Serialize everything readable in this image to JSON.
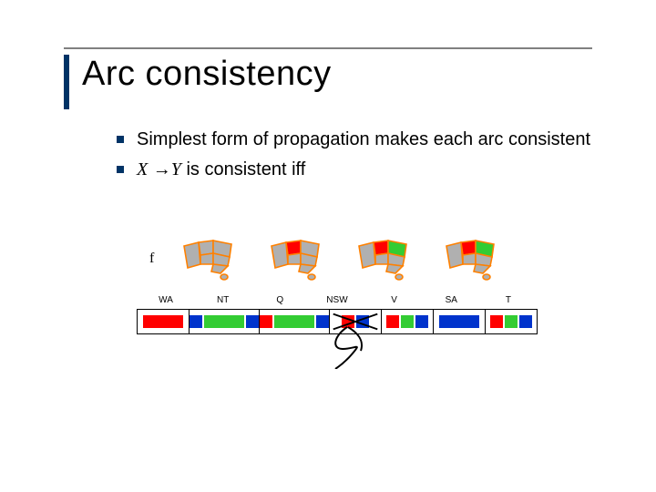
{
  "title": "Arc consistency",
  "bullets": {
    "b1": "Simplest form of propagation makes each arc consistent",
    "b2_x": "X",
    "b2_arrow": " →",
    "b2_y": "Y",
    "b2_rest": " is consistent iff"
  },
  "f_mark": "f",
  "colors": {
    "red": "#ff0000",
    "green": "#33cc33",
    "blue": "#0033cc",
    "orange": "#ff8000",
    "outline": "#ff8000",
    "gray": "#b0b0b0"
  },
  "regions": [
    "WA",
    "NT",
    "Q",
    "NSW",
    "V",
    "SA",
    "T"
  ],
  "domains": {
    "WA": [
      {
        "c": "red",
        "w": "big"
      }
    ],
    "NT": [
      {
        "c": "blue",
        "w": "sm"
      },
      {
        "c": "green",
        "w": "big"
      },
      {
        "c": "blue",
        "w": "sm"
      }
    ],
    "Q": [
      {
        "c": "red",
        "w": "sm"
      },
      {
        "c": "green",
        "w": "big"
      },
      {
        "c": "blue",
        "w": "sm"
      }
    ],
    "NSW": [
      {
        "c": "red",
        "w": "sm"
      },
      {
        "c": "blue",
        "w": "sm"
      }
    ],
    "V": [
      {
        "c": "red",
        "w": "sm"
      },
      {
        "c": "green",
        "w": "sm"
      },
      {
        "c": "blue",
        "w": "sm"
      }
    ],
    "SA": [
      {
        "c": "blue",
        "w": "big"
      }
    ],
    "T": [
      {
        "c": "red",
        "w": "sm"
      },
      {
        "c": "green",
        "w": "sm"
      },
      {
        "c": "blue",
        "w": "sm"
      }
    ]
  },
  "nsw_crossed": true,
  "maps": [
    {
      "wa": "gray",
      "nt": "gray",
      "q": "gray",
      "sa": "gray",
      "nsw": "gray",
      "v": "gray",
      "t": "gray"
    },
    {
      "wa": "gray",
      "nt": "red",
      "q": "gray",
      "sa": "gray",
      "nsw": "gray",
      "v": "gray",
      "t": "gray"
    },
    {
      "wa": "gray",
      "nt": "red",
      "q": "green",
      "sa": "gray",
      "nsw": "gray",
      "v": "gray",
      "t": "gray"
    },
    {
      "wa": "gray",
      "nt": "red",
      "q": "green",
      "sa": "gray",
      "nsw": "gray",
      "v": "gray",
      "t": "gray"
    }
  ]
}
